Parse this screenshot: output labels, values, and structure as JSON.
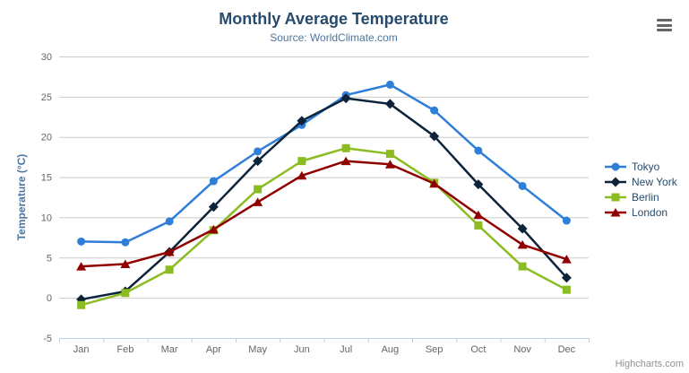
{
  "chart_data": {
    "type": "line",
    "title": "Monthly Average Temperature",
    "subtitle": "Source: WorldClimate.com",
    "xlabel": "",
    "ylabel": "Temperature (°C)",
    "ylim": [
      -5,
      30
    ],
    "ytick_interval": 5,
    "yticks": [
      30,
      25,
      20,
      15,
      10,
      5,
      0,
      -5
    ],
    "grid": true,
    "legend_position": "right",
    "categories": [
      "Jan",
      "Feb",
      "Mar",
      "Apr",
      "May",
      "Jun",
      "Jul",
      "Aug",
      "Sep",
      "Oct",
      "Nov",
      "Dec"
    ],
    "series": [
      {
        "name": "Tokyo",
        "color": "#2f7ed8",
        "marker": "circle",
        "values": [
          7.0,
          6.9,
          9.5,
          14.5,
          18.2,
          21.5,
          25.2,
          26.5,
          23.3,
          18.3,
          13.9,
          9.6
        ]
      },
      {
        "name": "New York",
        "color": "#0d233a",
        "marker": "diamond",
        "values": [
          -0.2,
          0.8,
          5.7,
          11.3,
          17.0,
          22.0,
          24.8,
          24.1,
          20.1,
          14.1,
          8.6,
          2.5
        ]
      },
      {
        "name": "Berlin",
        "color": "#8bbc21",
        "marker": "square",
        "values": [
          -0.9,
          0.6,
          3.5,
          8.4,
          13.5,
          17.0,
          18.6,
          17.9,
          14.3,
          9.0,
          3.9,
          1.0
        ]
      },
      {
        "name": "London",
        "color": "#910000",
        "marker": "triangle",
        "values": [
          3.9,
          4.2,
          5.7,
          8.5,
          11.9,
          15.2,
          17.0,
          16.6,
          14.2,
          10.3,
          6.6,
          4.8
        ]
      }
    ]
  },
  "credits": {
    "label": "Highcharts.com"
  },
  "icons": {
    "export_menu": "hamburger-menu-icon"
  },
  "theme": {
    "background": "#ffffff",
    "title_color": "#274b6d",
    "subtitle_color": "#4d759e",
    "axis_title_color": "#4d759e",
    "tick_label_color": "#666666",
    "grid_color": "#cccccc",
    "axis_line_color": "#c0d0e0",
    "tick_color": "#c0d0e0",
    "legend_text_color": "#274b6d",
    "credit_color": "#909090",
    "export_icon_color": "#666666"
  }
}
